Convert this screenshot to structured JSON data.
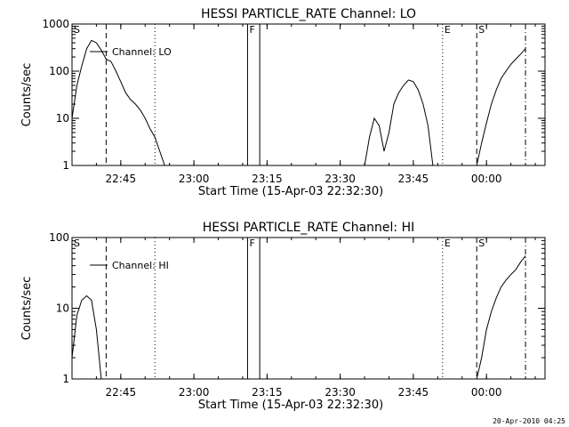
{
  "chart_data": [
    {
      "type": "line",
      "title": "HESSI PARTICLE_RATE Channel: LO",
      "xlabel": "Start Time (15-Apr-03 22:32:30)",
      "ylabel": "Counts/sec",
      "yscale": "log",
      "ylim": [
        1,
        1000
      ],
      "xlim": [
        "22:35",
        "00:12"
      ],
      "xticks": [
        "22:45",
        "23:00",
        "23:15",
        "23:30",
        "23:45",
        "00:00"
      ],
      "yticks": [
        "1",
        "10",
        "100",
        "1000"
      ],
      "grid": false,
      "legend": {
        "label": "Channel: LO",
        "placement": "top-left"
      },
      "markers": [
        {
          "label": "S",
          "time": "22:35",
          "style": "none"
        },
        {
          "label": "",
          "time": "22:42",
          "style": "dashed"
        },
        {
          "label": "",
          "time": "22:52",
          "style": "dotted"
        },
        {
          "label": "F",
          "time": "23:11",
          "style": "solid"
        },
        {
          "label": "",
          "time": "23:13.5",
          "style": "solid"
        },
        {
          "label": "E",
          "time": "23:51",
          "style": "dotted"
        },
        {
          "label": "S",
          "time": "23:58",
          "style": "dashed"
        },
        {
          "label": "",
          "time": "00:08",
          "style": "dashdot"
        }
      ],
      "series": [
        {
          "name": "Channel: LO",
          "segments": [
            [
              [
                "22:35",
                10
              ],
              [
                "22:36",
                50
              ],
              [
                "22:37",
                130
              ],
              [
                "22:38",
                300
              ],
              [
                "22:39",
                450
              ],
              [
                "22:40",
                400
              ],
              [
                "22:41",
                280
              ],
              [
                "22:42",
                180
              ],
              [
                "22:43",
                160
              ],
              [
                "22:44",
                100
              ],
              [
                "22:45",
                60
              ],
              [
                "22:46",
                35
              ],
              [
                "22:47",
                25
              ],
              [
                "22:48",
                20
              ],
              [
                "22:49",
                15
              ],
              [
                "22:50",
                10
              ],
              [
                "22:51",
                6
              ],
              [
                "22:52",
                4
              ],
              [
                "22:53",
                2
              ],
              [
                "22:54",
                1
              ]
            ],
            [
              [
                "23:35",
                1
              ],
              [
                "23:36",
                4
              ],
              [
                "23:37",
                10
              ],
              [
                "23:38",
                7
              ],
              [
                "23:39",
                2
              ],
              [
                "23:40",
                5
              ],
              [
                "23:41",
                20
              ],
              [
                "23:42",
                35
              ],
              [
                "23:43",
                50
              ],
              [
                "23:44",
                65
              ],
              [
                "23:45",
                60
              ],
              [
                "23:46",
                40
              ],
              [
                "23:47",
                20
              ],
              [
                "23:48",
                7
              ],
              [
                "23:49",
                1
              ]
            ],
            [
              [
                "23:58",
                1
              ],
              [
                "23:59",
                3
              ],
              [
                "00:00",
                8
              ],
              [
                "00:01",
                20
              ],
              [
                "00:02",
                40
              ],
              [
                "00:03",
                70
              ],
              [
                "00:04",
                100
              ],
              [
                "00:05",
                140
              ],
              [
                "00:06",
                180
              ],
              [
                "00:07",
                230
              ],
              [
                "00:08",
                300
              ]
            ]
          ]
        }
      ]
    },
    {
      "type": "line",
      "title": "HESSI PARTICLE_RATE Channel: HI",
      "xlabel": "Start Time (15-Apr-03 22:32:30)",
      "ylabel": "Counts/sec",
      "yscale": "log",
      "ylim": [
        1,
        100
      ],
      "xlim": [
        "22:35",
        "00:12"
      ],
      "xticks": [
        "22:45",
        "23:00",
        "23:15",
        "23:30",
        "23:45",
        "00:00"
      ],
      "yticks": [
        "1",
        "10",
        "100"
      ],
      "grid": false,
      "legend": {
        "label": "Channel: HI",
        "placement": "top-left"
      },
      "markers": [
        {
          "label": "S",
          "time": "22:35",
          "style": "none"
        },
        {
          "label": "",
          "time": "22:42",
          "style": "dashed"
        },
        {
          "label": "",
          "time": "22:52",
          "style": "dotted"
        },
        {
          "label": "F",
          "time": "23:11",
          "style": "solid"
        },
        {
          "label": "",
          "time": "23:13.5",
          "style": "solid"
        },
        {
          "label": "E",
          "time": "23:51",
          "style": "dotted"
        },
        {
          "label": "S",
          "time": "23:58",
          "style": "dashed"
        },
        {
          "label": "",
          "time": "00:08",
          "style": "dashdot"
        }
      ],
      "series": [
        {
          "name": "Channel: HI",
          "segments": [
            [
              [
                "22:35",
                2
              ],
              [
                "22:36",
                8
              ],
              [
                "22:37",
                13
              ],
              [
                "22:38",
                15
              ],
              [
                "22:39",
                13
              ],
              [
                "22:40",
                5
              ],
              [
                "22:41",
                1
              ]
            ],
            [
              [
                "23:58",
                1
              ],
              [
                "23:59",
                2
              ],
              [
                "00:00",
                5
              ],
              [
                "00:01",
                9
              ],
              [
                "00:02",
                14
              ],
              [
                "00:03",
                20
              ],
              [
                "00:04",
                25
              ],
              [
                "00:05",
                30
              ],
              [
                "00:06",
                35
              ],
              [
                "00:07",
                45
              ],
              [
                "00:08",
                55
              ]
            ]
          ]
        }
      ]
    }
  ],
  "footer": "20-Apr-2010 04:25"
}
